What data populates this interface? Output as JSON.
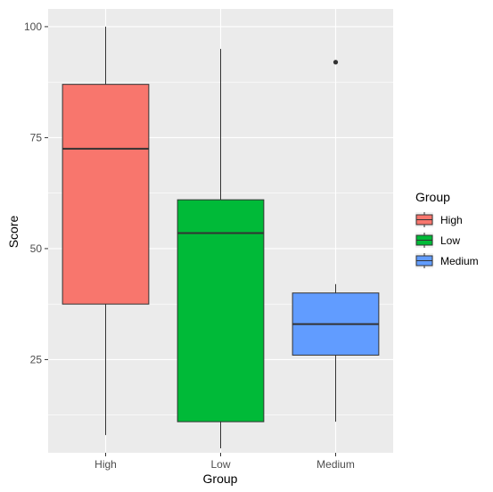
{
  "chart_data": {
    "type": "box",
    "title": "",
    "xlabel": "Group",
    "ylabel": "Score",
    "ylim": [
      4,
      104
    ],
    "yticks": [
      25,
      50,
      75,
      100
    ],
    "grid": true,
    "legend_position": "right",
    "legend_title": "Group",
    "categories": [
      "High",
      "Low",
      "Medium"
    ],
    "series": [
      {
        "name": "High",
        "color": "#f8766d",
        "min": 8,
        "q1": 37.5,
        "median": 72.5,
        "q3": 87,
        "max": 100,
        "outliers": []
      },
      {
        "name": "Low",
        "color": "#00ba38",
        "min": 5,
        "q1": 11,
        "median": 53.5,
        "q3": 61,
        "max": 95,
        "outliers": []
      },
      {
        "name": "Medium",
        "color": "#619cff",
        "min": 11,
        "q1": 26,
        "median": 33,
        "q3": 40,
        "max": 42,
        "outliers": [
          92
        ]
      }
    ]
  }
}
